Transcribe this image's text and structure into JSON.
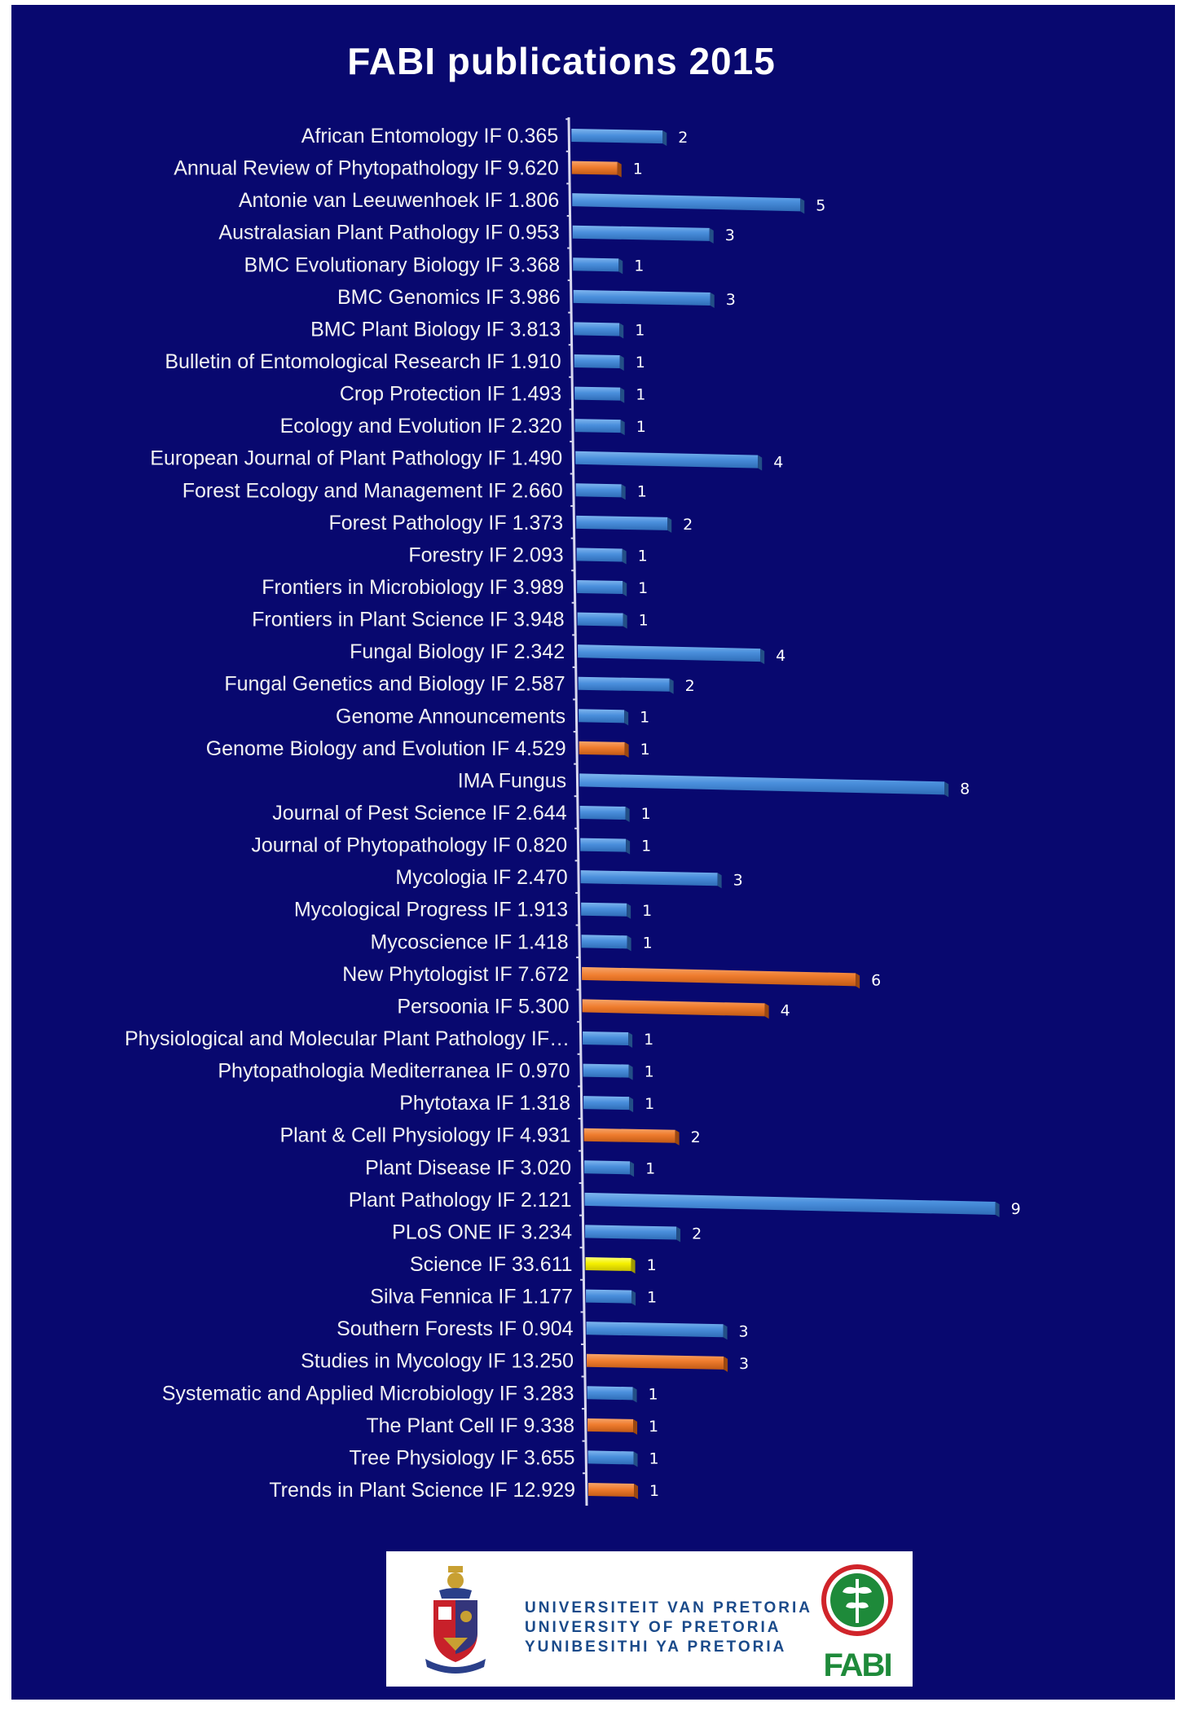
{
  "chart_data": {
    "type": "bar",
    "orientation": "horizontal",
    "title": "FABI publications 2015",
    "xlim": [
      0,
      9
    ],
    "grid": false,
    "legend": "none",
    "colors": {
      "default": "#4a8fdc",
      "orange": "#ef7c2e",
      "yellow": "#f5f000"
    },
    "categories": [
      "African Entomology IF 0.365",
      "Annual Review of Phytopathology IF 9.620",
      "Antonie van Leeuwenhoek IF 1.806",
      "Australasian Plant Pathology IF 0.953",
      "BMC Evolutionary Biology IF 3.368",
      "BMC Genomics IF 3.986",
      "BMC Plant Biology IF 3.813",
      "Bulletin of Entomological Research IF 1.910",
      "Crop Protection IF 1.493",
      "Ecology and Evolution IF 2.320",
      "European Journal of Plant Pathology IF 1.490",
      "Forest Ecology and Management IF 2.660",
      "Forest Pathology IF 1.373",
      "Forestry IF 2.093",
      "Frontiers in Microbiology IF 3.989",
      "Frontiers in Plant Science IF 3.948",
      "Fungal Biology IF 2.342",
      "Fungal Genetics and Biology IF 2.587",
      "Genome Announcements",
      "Genome Biology and Evolution IF 4.529",
      "IMA Fungus",
      "Journal of Pest Science IF 2.644",
      "Journal of Phytopathology IF 0.820",
      "Mycologia IF 2.470",
      "Mycological Progress IF 1.913",
      "Mycoscience IF 1.418",
      "New Phytologist IF 7.672",
      "Persoonia IF 5.300",
      "Physiological and Molecular Plant Pathology IF…",
      "Phytopathologia Mediterranea IF 0.970",
      "Phytotaxa IF 1.318",
      "Plant & Cell Physiology IF 4.931",
      "Plant Disease IF 3.020",
      "Plant Pathology IF 2.121",
      "PLoS ONE IF 3.234",
      "Science IF 33.611",
      "Silva Fennica IF 1.177",
      "Southern Forests IF 0.904",
      "Studies in Mycology IF 13.250",
      "Systematic and Applied Microbiology IF 3.283",
      "The Plant Cell IF 9.338",
      "Tree Physiology IF 3.655",
      "Trends in Plant Science IF 12.929"
    ],
    "values": [
      2,
      1,
      5,
      3,
      1,
      3,
      1,
      1,
      1,
      1,
      4,
      1,
      2,
      1,
      1,
      1,
      4,
      2,
      1,
      1,
      8,
      1,
      1,
      3,
      1,
      1,
      6,
      4,
      1,
      1,
      1,
      2,
      1,
      9,
      2,
      1,
      1,
      3,
      3,
      1,
      1,
      1,
      1
    ],
    "bar_colors": [
      "blue",
      "orange",
      "blue",
      "blue",
      "blue",
      "blue",
      "blue",
      "blue",
      "blue",
      "blue",
      "blue",
      "blue",
      "blue",
      "blue",
      "blue",
      "blue",
      "blue",
      "blue",
      "blue",
      "orange",
      "blue",
      "blue",
      "blue",
      "blue",
      "blue",
      "blue",
      "orange",
      "orange",
      "blue",
      "blue",
      "blue",
      "orange",
      "blue",
      "blue",
      "blue",
      "yellow",
      "blue",
      "blue",
      "orange",
      "blue",
      "orange",
      "blue",
      "orange"
    ]
  },
  "logos": {
    "university_lines": [
      "UNIVERSITEIT VAN PRETORIA",
      "UNIVERSITY OF PRETORIA",
      "YUNIBESITHI YA PRETORIA"
    ],
    "fabi_text": "FABI"
  }
}
